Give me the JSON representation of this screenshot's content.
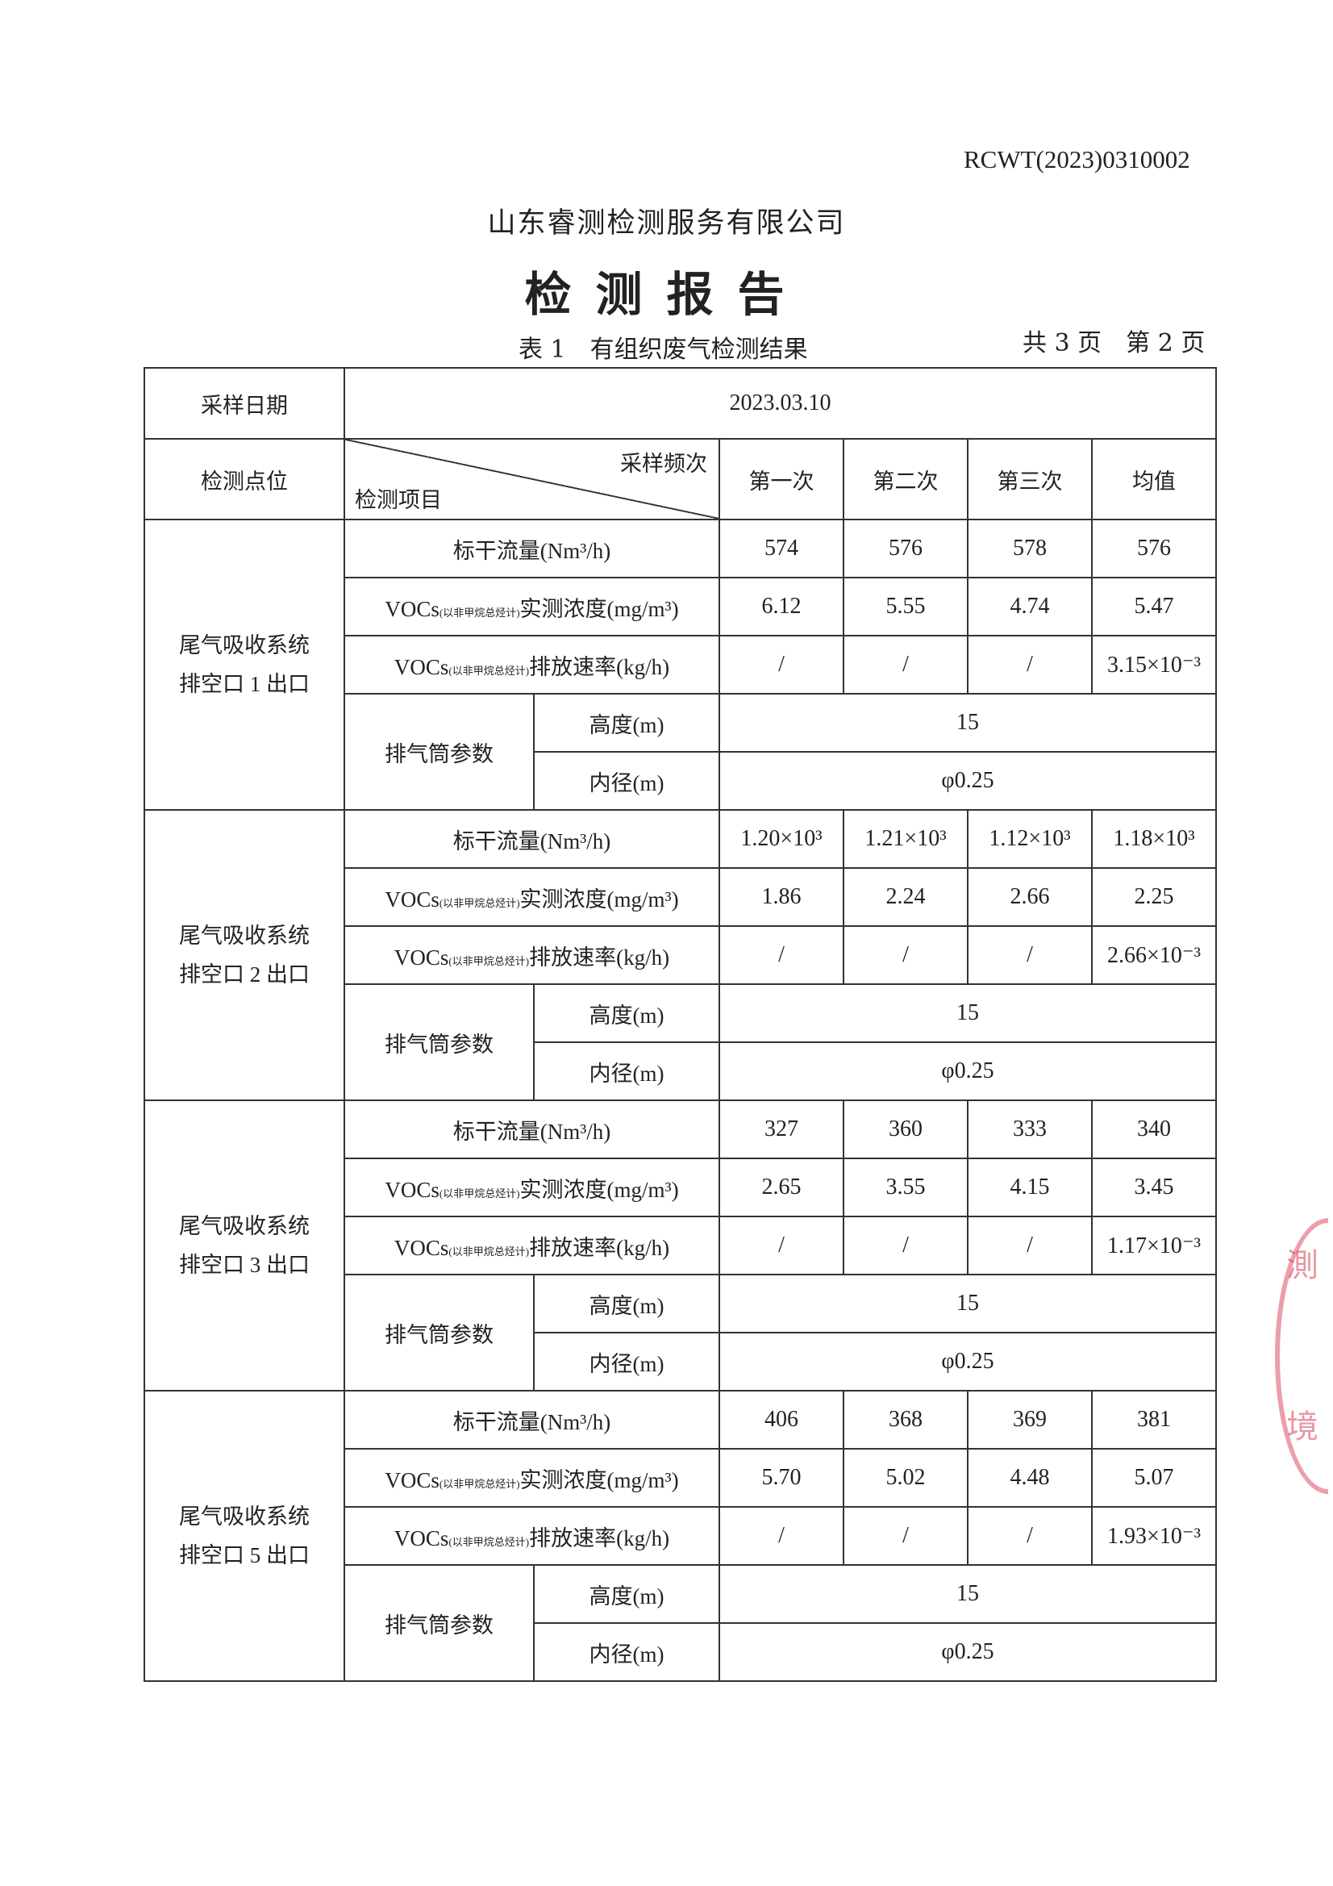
{
  "header": {
    "doc_number": "RCWT(2023)0310002",
    "company": "山东睿测检测服务有限公司",
    "title": "检测报告",
    "caption": "表 1　有组织废气检测结果",
    "pages": "共 3 页　第 2 页"
  },
  "table": {
    "sampling_date_label": "采样日期",
    "sampling_date": "2023.03.10",
    "location_label": "检测点位",
    "frequency_label": "采样频次",
    "item_label": "检测项目",
    "columns": [
      "第一次",
      "第二次",
      "第三次",
      "均值"
    ],
    "row_labels": {
      "flow": "标干流量(Nm³/h)",
      "vocs_prefix": "VOCs",
      "vocs_sub": "(以非甲烷总烃计)",
      "conc": "实测浓度(mg/m³)",
      "rate": "排放速率(kg/h)",
      "stack": "排气筒参数",
      "height": "高度(m)",
      "diameter": "内径(m)"
    },
    "groups": [
      {
        "location": "尾气吸收系统排空口 1 出口",
        "flow": [
          "574",
          "576",
          "578",
          "576"
        ],
        "conc": [
          "6.12",
          "5.55",
          "4.74",
          "5.47"
        ],
        "rate": [
          "/",
          "/",
          "/",
          "3.15×10⁻³"
        ],
        "height": "15",
        "diameter": "φ0.25"
      },
      {
        "location": "尾气吸收系统排空口 2 出口",
        "flow": [
          "1.20×10³",
          "1.21×10³",
          "1.12×10³",
          "1.18×10³"
        ],
        "conc": [
          "1.86",
          "2.24",
          "2.66",
          "2.25"
        ],
        "rate": [
          "/",
          "/",
          "/",
          "2.66×10⁻³"
        ],
        "height": "15",
        "diameter": "φ0.25"
      },
      {
        "location": "尾气吸收系统排空口 3 出口",
        "flow": [
          "327",
          "360",
          "333",
          "340"
        ],
        "conc": [
          "2.65",
          "3.55",
          "4.15",
          "3.45"
        ],
        "rate": [
          "/",
          "/",
          "/",
          "1.17×10⁻³"
        ],
        "height": "15",
        "diameter": "φ0.25"
      },
      {
        "location": "尾气吸收系统排空口 5 出口",
        "flow": [
          "406",
          "368",
          "369",
          "381"
        ],
        "conc": [
          "5.70",
          "5.02",
          "4.48",
          "5.07"
        ],
        "rate": [
          "/",
          "/",
          "/",
          "1.93×10⁻³"
        ],
        "height": "15",
        "diameter": "φ0.25"
      }
    ]
  },
  "stamp": {
    "text": "测 境"
  }
}
